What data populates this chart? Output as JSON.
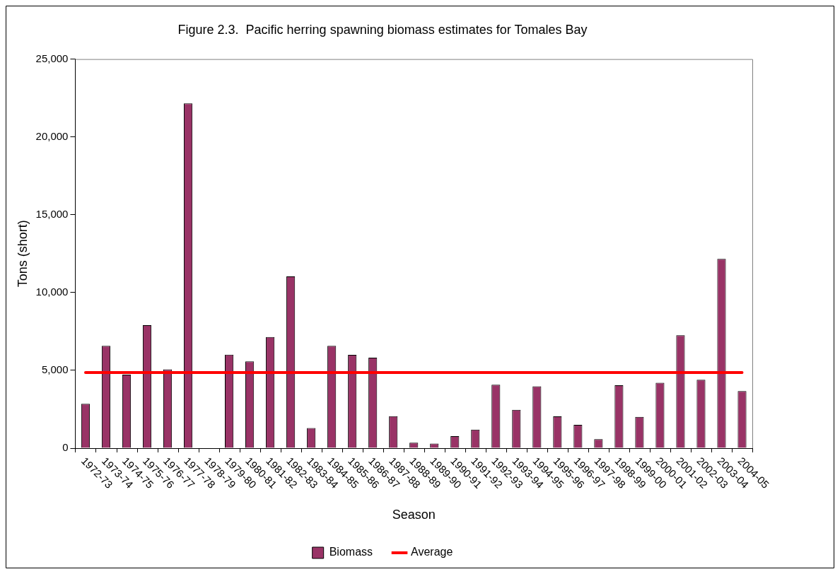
{
  "chart_data": {
    "type": "bar",
    "title": "Figure 2.3.  Pacific herring spawning biomass estimates for Tomales Bay",
    "xlabel": "Season",
    "ylabel": "Tons (short)",
    "categories": [
      "1972-73",
      "1973-74",
      "1974-75",
      "1975-76",
      "1976-77",
      "1977-78",
      "1978-79",
      "1979-80",
      "1980-81",
      "1981-82",
      "1982-83",
      "1983-84",
      "1984-85",
      "1985-86",
      "1986-87",
      "1987-88",
      "1988-89",
      "1989-90",
      "1990-91",
      "1991-92",
      "1992-93",
      "1993-94",
      "1994-95",
      "1995-96",
      "1996-97",
      "1997-98",
      "1998-99",
      "1999-00",
      "2000-01",
      "2001-02",
      "2002-03",
      "2003-04",
      "2004-05"
    ],
    "series": [
      {
        "name": "Biomass",
        "color": "#993366",
        "values": [
          2850,
          6570,
          4720,
          7900,
          5060,
          22160,
          0,
          6010,
          5580,
          7140,
          11040,
          1290,
          6580,
          6000,
          5810,
          2060,
          350,
          300,
          770,
          1190,
          4075,
          2460,
          3980,
          2040,
          1500,
          580,
          4040,
          2010,
          4200,
          7260,
          4390,
          12160,
          3670
        ]
      },
      {
        "name": "Average",
        "type": "line",
        "color": "#ff0000",
        "values": [
          4860,
          4860,
          4860,
          4860,
          4860,
          4860,
          4860,
          4860,
          4860,
          4860,
          4860,
          4860,
          4860,
          4860,
          4860,
          4860,
          4860,
          4860,
          4860,
          4860,
          4860,
          4860,
          4860,
          4860,
          4860,
          4860,
          4860,
          4860,
          4860,
          4860,
          4860,
          4860,
          4860
        ]
      }
    ],
    "ylim": [
      0,
      25000
    ],
    "yticks": [
      0,
      {
        "value": 5000,
        "label": "5,000"
      },
      {
        "value": 10000,
        "label": "10,000"
      },
      {
        "value": 15000,
        "label": "15,000"
      },
      {
        "value": 20000,
        "label": "20,000"
      },
      {
        "value": 25000,
        "label": "25,000"
      }
    ],
    "grid": false,
    "legend": "bottom",
    "marker": "none"
  }
}
